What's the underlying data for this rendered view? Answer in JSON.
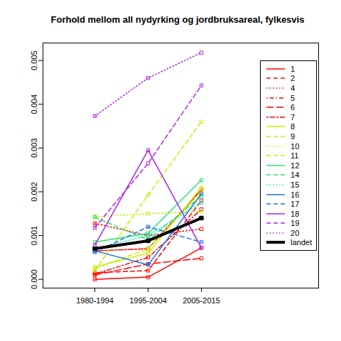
{
  "chart_data": {
    "type": "line",
    "title": "Forhold mellom all nydyrking og jordbruksareal, fylkesvis",
    "categories": [
      "1980-1994",
      "1995-2004",
      "2005-2015"
    ],
    "ylim": [
      -0.0002,
      0.0054
    ],
    "yticks": [
      {
        "value": 0,
        "label": "0.000"
      },
      {
        "value": 0.001,
        "label": "0.001"
      },
      {
        "value": 0.002,
        "label": "0.002"
      },
      {
        "value": 0.003,
        "label": "0.003"
      },
      {
        "value": 0.004,
        "label": "0.004"
      },
      {
        "value": 0.005,
        "label": "0.005"
      }
    ],
    "grid": false,
    "legend": "top-right",
    "series": [
      {
        "name": "1",
        "color": "#ff0000",
        "line_style": "solid",
        "marker": "square",
        "values": [
          0.0,
          5e-05,
          0.00072
        ]
      },
      {
        "name": "2",
        "color": "#ff0000",
        "line_style": "dashed",
        "marker": "square",
        "values": [
          0.00015,
          0.0002,
          0.0018
        ]
      },
      {
        "name": "4",
        "color": "#ff0000",
        "line_style": "dotted",
        "marker": "square",
        "values": [
          0.00128,
          0.001,
          0.00115
        ]
      },
      {
        "name": "5",
        "color": "#ff0000",
        "line_style": "dotdash",
        "marker": "square",
        "values": [
          0.00012,
          0.0005,
          0.0016
        ]
      },
      {
        "name": "6",
        "color": "#ff0000",
        "line_style": "longdash",
        "marker": "square",
        "values": [
          0.0001,
          0.00035,
          0.00048
        ]
      },
      {
        "name": "7",
        "color": "#ff0000",
        "line_style": "twodash",
        "marker": "square",
        "values": [
          0.00065,
          0.0007,
          0.00205
        ]
      },
      {
        "name": "8",
        "color": "#c8f000",
        "line_style": "solid",
        "marker": "square",
        "values": [
          0.00028,
          0.0006,
          0.0021
        ]
      },
      {
        "name": "9",
        "color": "#c8f000",
        "line_style": "dashed",
        "marker": "square",
        "values": [
          0.00025,
          0.0007,
          0.002
        ]
      },
      {
        "name": "10",
        "color": "#c8f000",
        "line_style": "dotted",
        "marker": "square",
        "values": [
          0.00143,
          0.0015,
          0.00155
        ]
      },
      {
        "name": "11",
        "color": "#c8f000",
        "line_style": "dashed",
        "marker": "square",
        "values": [
          0.0002,
          0.00193,
          0.0036
        ]
      },
      {
        "name": "12",
        "color": "#22e86a",
        "line_style": "solid",
        "marker": "square",
        "values": [
          0.00085,
          0.00105,
          0.00227
        ]
      },
      {
        "name": "14",
        "color": "#22e86a",
        "line_style": "dashed",
        "marker": "square",
        "values": [
          0.00142,
          0.0009,
          0.0019
        ]
      },
      {
        "name": "15",
        "color": "#22e8c0",
        "line_style": "dotted",
        "marker": "square",
        "values": [
          0.0007,
          0.001,
          0.00175
        ]
      },
      {
        "name": "16",
        "color": "#1a73e8",
        "line_style": "solid",
        "marker": "square",
        "values": [
          0.00065,
          0.00033,
          0.00195
        ]
      },
      {
        "name": "17",
        "color": "#1a73e8",
        "line_style": "dashed",
        "marker": "square",
        "values": [
          0.00062,
          0.0012,
          0.00085
        ]
      },
      {
        "name": "18",
        "color": "#b020f0",
        "line_style": "solid",
        "marker": "square",
        "values": [
          0.00078,
          0.00295,
          0.00072
        ]
      },
      {
        "name": "19",
        "color": "#b020f0",
        "line_style": "dashed",
        "marker": "square",
        "values": [
          0.00118,
          0.00265,
          0.00443
        ]
      },
      {
        "name": "20",
        "color": "#b020f0",
        "line_style": "dotted",
        "marker": "square",
        "values": [
          0.00373,
          0.0046,
          0.00518
        ]
      },
      {
        "name": "landet",
        "color": "#000000",
        "line_style": "solid",
        "marker": "square",
        "values": [
          0.0007,
          0.00088,
          0.0014
        ]
      }
    ]
  }
}
